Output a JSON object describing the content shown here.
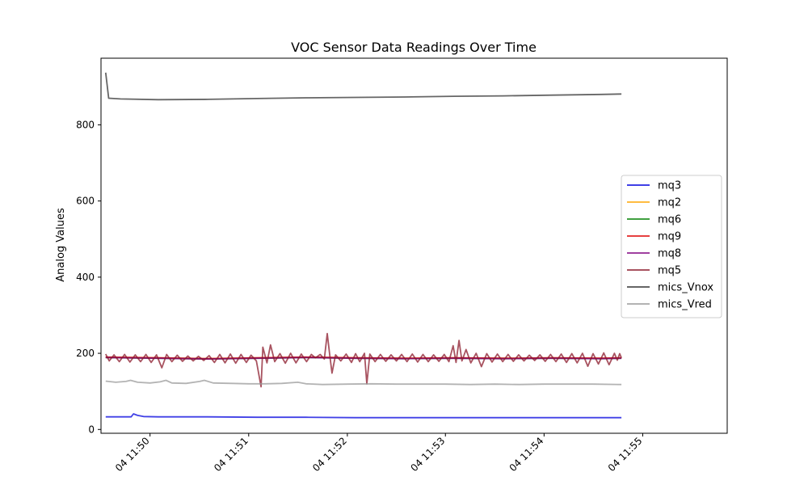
{
  "chart_data": {
    "type": "line",
    "title": "VOC Sensor Data Readings Over Time",
    "xlabel": "",
    "ylabel": "Analog Values",
    "x_unit": "minutes",
    "xlim": [
      11.825,
      11.931
    ],
    "ylim": [
      -10,
      975
    ],
    "x_ticks": [
      {
        "value": 11.8333,
        "label": "04 11:50"
      },
      {
        "value": 11.85,
        "label": "04 11:51"
      },
      {
        "value": 11.8667,
        "label": "04 11:52"
      },
      {
        "value": 11.8833,
        "label": "04 11:53"
      },
      {
        "value": 11.9,
        "label": "04 11:54"
      },
      {
        "value": 11.9167,
        "label": "04 11:55"
      }
    ],
    "y_ticks": [
      0,
      200,
      400,
      600,
      800
    ],
    "grid": false,
    "legend_position": "center-right",
    "series": [
      {
        "name": "mq3",
        "color": "#0000dd",
        "points": [
          [
            11.8258,
            33
          ],
          [
            11.8283,
            33
          ],
          [
            11.8301,
            33
          ],
          [
            11.8305,
            41
          ],
          [
            11.8312,
            37
          ],
          [
            11.8322,
            34
          ],
          [
            11.8347,
            33
          ],
          [
            11.8431,
            33
          ],
          [
            11.8514,
            32
          ],
          [
            11.8597,
            32
          ],
          [
            11.8681,
            31
          ],
          [
            11.8764,
            31
          ],
          [
            11.8847,
            31
          ],
          [
            11.8931,
            31
          ],
          [
            11.9014,
            31
          ],
          [
            11.9097,
            31
          ],
          [
            11.9131,
            31
          ]
        ]
      },
      {
        "name": "mq2",
        "color": "#ffa500",
        "points": [
          [
            11.8258,
            190
          ],
          [
            11.8347,
            188
          ],
          [
            11.8431,
            186
          ],
          [
            11.8514,
            188
          ],
          [
            11.8597,
            190
          ],
          [
            11.8681,
            188
          ],
          [
            11.8764,
            187
          ],
          [
            11.8847,
            188
          ],
          [
            11.8931,
            187
          ],
          [
            11.9014,
            188
          ],
          [
            11.9097,
            187
          ],
          [
            11.9131,
            188
          ]
        ]
      },
      {
        "name": "mq6",
        "color": "#008000",
        "points": [
          [
            11.8258,
            189
          ],
          [
            11.8347,
            187
          ],
          [
            11.8431,
            185
          ],
          [
            11.8514,
            187
          ],
          [
            11.8597,
            189
          ],
          [
            11.8681,
            187
          ],
          [
            11.8764,
            186
          ],
          [
            11.8847,
            187
          ],
          [
            11.8931,
            186
          ],
          [
            11.9014,
            187
          ],
          [
            11.9097,
            186
          ],
          [
            11.9131,
            187
          ]
        ]
      },
      {
        "name": "mq9",
        "color": "#dd0000",
        "points": [
          [
            11.8258,
            190
          ],
          [
            11.8347,
            188
          ],
          [
            11.8431,
            186
          ],
          [
            11.8514,
            188
          ],
          [
            11.8597,
            190
          ],
          [
            11.8681,
            188
          ],
          [
            11.8764,
            187
          ],
          [
            11.8847,
            188
          ],
          [
            11.8931,
            187
          ],
          [
            11.9014,
            188
          ],
          [
            11.9097,
            187
          ],
          [
            11.9131,
            188
          ]
        ]
      },
      {
        "name": "mq8",
        "color": "#800080",
        "points": [
          [
            11.8258,
            189
          ],
          [
            11.8347,
            187
          ],
          [
            11.8431,
            185
          ],
          [
            11.8514,
            187
          ],
          [
            11.8597,
            189
          ],
          [
            11.8681,
            187
          ],
          [
            11.8764,
            186
          ],
          [
            11.8847,
            187
          ],
          [
            11.8931,
            186
          ],
          [
            11.9014,
            187
          ],
          [
            11.9097,
            186
          ],
          [
            11.9131,
            187
          ]
        ]
      },
      {
        "name": "mq5",
        "color": "#8b1a2b",
        "points": [
          [
            11.8258,
            198
          ],
          [
            11.8264,
            180
          ],
          [
            11.8272,
            196
          ],
          [
            11.8281,
            178
          ],
          [
            11.829,
            197
          ],
          [
            11.8299,
            177
          ],
          [
            11.8308,
            196
          ],
          [
            11.8317,
            178
          ],
          [
            11.8326,
            197
          ],
          [
            11.8335,
            176
          ],
          [
            11.8344,
            196
          ],
          [
            11.8353,
            162
          ],
          [
            11.8361,
            197
          ],
          [
            11.837,
            178
          ],
          [
            11.8379,
            195
          ],
          [
            11.8388,
            179
          ],
          [
            11.8397,
            193
          ],
          [
            11.8406,
            180
          ],
          [
            11.8415,
            192
          ],
          [
            11.8424,
            181
          ],
          [
            11.8433,
            194
          ],
          [
            11.8442,
            176
          ],
          [
            11.8451,
            197
          ],
          [
            11.846,
            175
          ],
          [
            11.8469,
            198
          ],
          [
            11.8478,
            174
          ],
          [
            11.8487,
            197
          ],
          [
            11.8496,
            176
          ],
          [
            11.8504,
            195
          ],
          [
            11.8513,
            180
          ],
          [
            11.8521,
            112
          ],
          [
            11.8524,
            216
          ],
          [
            11.8531,
            175
          ],
          [
            11.8537,
            222
          ],
          [
            11.8544,
            178
          ],
          [
            11.8553,
            199
          ],
          [
            11.8562,
            174
          ],
          [
            11.8571,
            200
          ],
          [
            11.858,
            175
          ],
          [
            11.8589,
            198
          ],
          [
            11.8598,
            178
          ],
          [
            11.8606,
            197
          ],
          [
            11.8613,
            188
          ],
          [
            11.8621,
            197
          ],
          [
            11.8628,
            185
          ],
          [
            11.8633,
            252
          ],
          [
            11.8637,
            199
          ],
          [
            11.8641,
            148
          ],
          [
            11.8647,
            196
          ],
          [
            11.8656,
            180
          ],
          [
            11.8665,
            198
          ],
          [
            11.8674,
            176
          ],
          [
            11.8681,
            199
          ],
          [
            11.8688,
            178
          ],
          [
            11.8696,
            200
          ],
          [
            11.87,
            120
          ],
          [
            11.8705,
            198
          ],
          [
            11.8714,
            178
          ],
          [
            11.8723,
            197
          ],
          [
            11.8732,
            179
          ],
          [
            11.8741,
            196
          ],
          [
            11.875,
            180
          ],
          [
            11.8759,
            197
          ],
          [
            11.8768,
            178
          ],
          [
            11.8777,
            198
          ],
          [
            11.8786,
            177
          ],
          [
            11.8795,
            197
          ],
          [
            11.8804,
            178
          ],
          [
            11.8813,
            196
          ],
          [
            11.8822,
            179
          ],
          [
            11.8831,
            197
          ],
          [
            11.8839,
            178
          ],
          [
            11.8846,
            220
          ],
          [
            11.8851,
            176
          ],
          [
            11.8856,
            234
          ],
          [
            11.8861,
            180
          ],
          [
            11.8868,
            210
          ],
          [
            11.8876,
            175
          ],
          [
            11.8885,
            200
          ],
          [
            11.8894,
            165
          ],
          [
            11.8903,
            199
          ],
          [
            11.8912,
            177
          ],
          [
            11.8921,
            198
          ],
          [
            11.893,
            178
          ],
          [
            11.8939,
            197
          ],
          [
            11.8948,
            179
          ],
          [
            11.8957,
            196
          ],
          [
            11.8966,
            180
          ],
          [
            11.8975,
            195
          ],
          [
            11.8984,
            181
          ],
          [
            11.8993,
            196
          ],
          [
            11.9002,
            179
          ],
          [
            11.9011,
            197
          ],
          [
            11.902,
            178
          ],
          [
            11.9029,
            198
          ],
          [
            11.9038,
            176
          ],
          [
            11.9047,
            199
          ],
          [
            11.9056,
            175
          ],
          [
            11.9065,
            200
          ],
          [
            11.9074,
            166
          ],
          [
            11.9083,
            199
          ],
          [
            11.9092,
            172
          ],
          [
            11.9101,
            201
          ],
          [
            11.911,
            170
          ],
          [
            11.9119,
            200
          ],
          [
            11.9124,
            182
          ],
          [
            11.9128,
            199
          ],
          [
            11.9131,
            188
          ]
        ]
      },
      {
        "name": "mics_Vnox",
        "color": "#333333",
        "points": [
          [
            11.8258,
            937
          ],
          [
            11.8263,
            870
          ],
          [
            11.8283,
            868
          ],
          [
            11.8347,
            866
          ],
          [
            11.8431,
            867
          ],
          [
            11.8514,
            869
          ],
          [
            11.8597,
            871
          ],
          [
            11.8681,
            872
          ],
          [
            11.8764,
            873
          ],
          [
            11.8847,
            875
          ],
          [
            11.8931,
            876
          ],
          [
            11.9014,
            878
          ],
          [
            11.9097,
            880
          ],
          [
            11.9131,
            881
          ]
        ]
      },
      {
        "name": "mics_Vred",
        "color": "#999999",
        "points": [
          [
            11.8258,
            127
          ],
          [
            11.8275,
            124
          ],
          [
            11.8292,
            126
          ],
          [
            11.83,
            129
          ],
          [
            11.8312,
            124
          ],
          [
            11.8333,
            122
          ],
          [
            11.835,
            125
          ],
          [
            11.836,
            129
          ],
          [
            11.837,
            122
          ],
          [
            11.8394,
            121
          ],
          [
            11.8417,
            126
          ],
          [
            11.8425,
            129
          ],
          [
            11.844,
            122
          ],
          [
            11.8472,
            121
          ],
          [
            11.85,
            120
          ],
          [
            11.8528,
            120
          ],
          [
            11.8556,
            121
          ],
          [
            11.8583,
            124
          ],
          [
            11.8597,
            120
          ],
          [
            11.8625,
            118
          ],
          [
            11.8667,
            119
          ],
          [
            11.8708,
            120
          ],
          [
            11.875,
            119
          ],
          [
            11.8792,
            119
          ],
          [
            11.8833,
            119
          ],
          [
            11.8875,
            118
          ],
          [
            11.8917,
            119
          ],
          [
            11.8958,
            118
          ],
          [
            11.9,
            119
          ],
          [
            11.9042,
            119
          ],
          [
            11.9083,
            119
          ],
          [
            11.9131,
            118
          ]
        ]
      }
    ]
  }
}
